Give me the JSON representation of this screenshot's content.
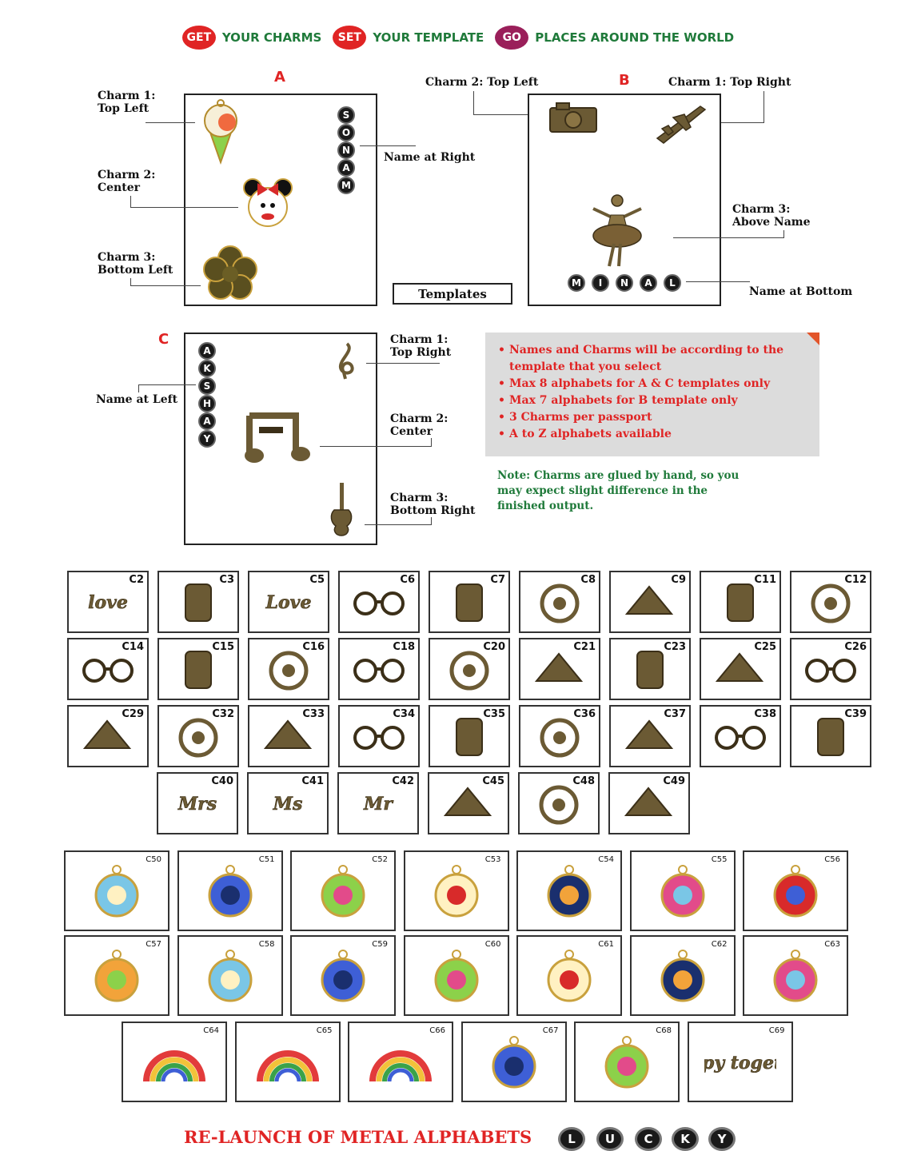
{
  "header": {
    "steps": [
      {
        "badge": "GET",
        "text": "YOUR CHARMS",
        "color": "#e02424"
      },
      {
        "badge": "SET",
        "text": "YOUR TEMPLATE",
        "color": "#e02424"
      },
      {
        "badge": "GO",
        "text": "PLACES AROUND THE WORLD",
        "color": "#9a1f5a"
      }
    ]
  },
  "template_a": {
    "letter": "A",
    "charm1": "Charm 1:\nTop Left",
    "charm2": "Charm 2:\nCenter",
    "charm3": "Charm 3:\nBottom Left",
    "name_label": "Name at Right",
    "name_letters": [
      "S",
      "O",
      "N",
      "A",
      "M"
    ]
  },
  "template_b": {
    "letter": "B",
    "charm2": "Charm 2: Top Left",
    "charm1": "Charm 1: Top Right",
    "charm3": "Charm 3:\nAbove Name",
    "name_label": "Name at Bottom",
    "name_letters": [
      "M",
      "I",
      "N",
      "A",
      "L"
    ]
  },
  "templates_label": "Templates",
  "template_c": {
    "letter": "C",
    "charm1": "Charm 1:\nTop Right",
    "charm2": "Charm 2:\nCenter",
    "charm3": "Charm 3:\nBottom Right",
    "name_label": "Name at Left",
    "name_letters": [
      "A",
      "K",
      "S",
      "H",
      "A",
      "Y"
    ]
  },
  "info": {
    "bullets": [
      "Names and Charms will be according to the template that you select",
      "Max 8 alphabets for A & C templates only",
      "Max 7 alphabets for B template only",
      "3 Charms per passport",
      "A to Z alphabets available"
    ],
    "note": "Note: Charms are glued by hand, so you may expect slight difference in the finished output."
  },
  "metal_charms": {
    "row1": [
      "C2",
      "C3",
      "C5",
      "C6",
      "C7",
      "C8",
      "C9",
      "C11",
      "C12"
    ],
    "row2": [
      "C14",
      "C15",
      "C16",
      "C18",
      "C20",
      "C21",
      "C23",
      "C25",
      "C26"
    ],
    "row3": [
      "C29",
      "C32",
      "C33",
      "C34",
      "C35",
      "C36",
      "C37",
      "C38",
      "C39"
    ],
    "row4": [
      "C40",
      "C41",
      "C42",
      "C45",
      "C48",
      "C49"
    ],
    "script_text": {
      "C2": "love",
      "C5": "Love",
      "C40": "Mrs",
      "C41": "Ms",
      "C42": "Mr"
    }
  },
  "enamel_charms": {
    "row1": [
      "C50",
      "C51",
      "C52",
      "C53",
      "C54",
      "C55",
      "C56"
    ],
    "row2": [
      "C57",
      "C58",
      "C59",
      "C60",
      "C61",
      "C62",
      "C63"
    ],
    "row3": [
      "C64",
      "C65",
      "C66",
      "C67",
      "C68",
      "C69"
    ],
    "script_text": {
      "C69": "happy together"
    }
  },
  "footer": {
    "text": "RE-LAUNCH OF METAL ALPHABETS",
    "letters": [
      "L",
      "U",
      "C",
      "K",
      "Y"
    ]
  },
  "colors": {
    "red": "#e02424",
    "green": "#1f7a3a",
    "bronze": "#7a6035",
    "panel": "#dcdcdc"
  }
}
